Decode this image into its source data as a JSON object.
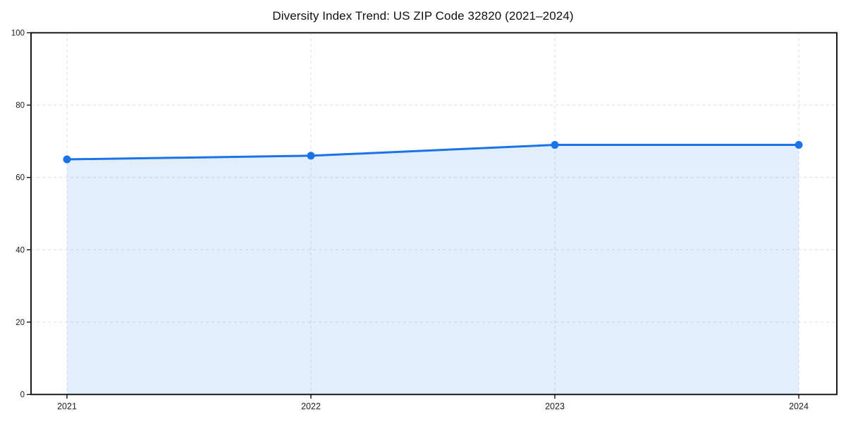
{
  "chart_data": {
    "type": "area",
    "title": "Diversity Index Trend: US ZIP Code 32820 (2021–2024)",
    "x": [
      2021,
      2022,
      2023,
      2024
    ],
    "series": [
      {
        "name": "Diversity Index",
        "values": [
          65,
          66,
          69,
          69
        ]
      }
    ],
    "xlabel": "",
    "ylabel": "",
    "ylim": [
      0,
      100
    ],
    "yticks": [
      0,
      20,
      40,
      60,
      80,
      100
    ],
    "grid": true,
    "grid_style": "dashed",
    "legend_position": "none",
    "colors": {
      "line": "#1a73e8",
      "marker": "#1a73e8",
      "fill": "#1a73e8",
      "fill_opacity": 0.12,
      "grid": "#e0e0e0",
      "axis": "#000000",
      "tick_label": "#1a1a1a",
      "background": "#ffffff"
    }
  }
}
